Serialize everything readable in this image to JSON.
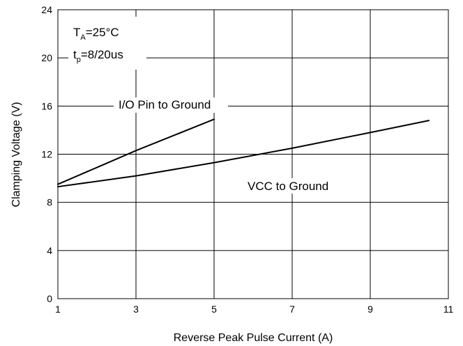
{
  "chart_data": {
    "type": "line",
    "xlabel": "Reverse Peak Pulse Current (A)",
    "ylabel": "Clamping Voltage (V)",
    "xlim": [
      1,
      11
    ],
    "ylim": [
      0,
      24
    ],
    "x_ticks": [
      1,
      3,
      5,
      7,
      9,
      11
    ],
    "y_ticks": [
      0,
      4,
      8,
      12,
      16,
      20,
      24
    ],
    "x_tick_labels": [
      "1",
      "3",
      "5",
      "7",
      "9",
      "11"
    ],
    "y_tick_labels": [
      "0",
      "4",
      "8",
      "12",
      "16",
      "20",
      "24"
    ],
    "grid": true,
    "series": [
      {
        "name": "I/O Pin to Ground",
        "x": [
          1,
          2,
          3,
          4,
          5
        ],
        "y": [
          9.5,
          10.9,
          12.3,
          13.6,
          14.9
        ]
      },
      {
        "name": "VCC to Ground",
        "x": [
          1,
          3,
          5,
          7,
          9,
          10.5
        ],
        "y": [
          9.3,
          10.2,
          11.3,
          12.5,
          13.8,
          14.8
        ]
      }
    ],
    "conditions": {
      "temp_main": "T",
      "temp_sub": "A",
      "temp_rest": "=25°C",
      "pulse_main": "t",
      "pulse_sub": "p",
      "pulse_rest": "=8/20us"
    },
    "line_color": "#000000",
    "background_color": "#ffffff"
  }
}
